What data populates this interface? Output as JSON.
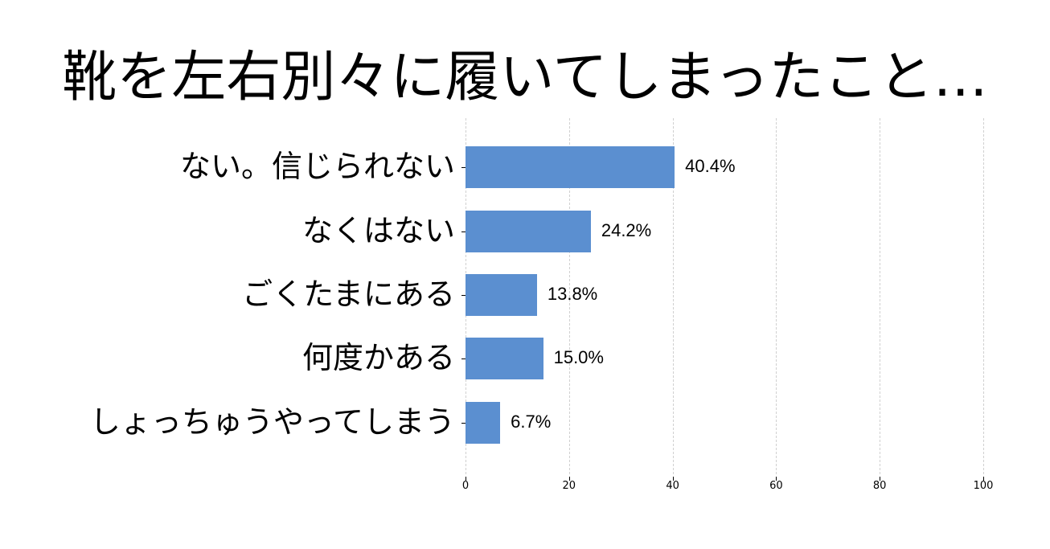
{
  "chart_data": {
    "type": "bar",
    "orientation": "horizontal",
    "title": "靴を左右別々に履いてしまったこと…",
    "categories": [
      "ない。信じられない",
      "なくはない",
      "ごくたまにある",
      "何度かある",
      "しょっちゅうやってしまう"
    ],
    "values": [
      40.4,
      24.2,
      13.8,
      15.0,
      6.7
    ],
    "value_labels": [
      "40.4%",
      "24.2%",
      "13.8%",
      "15.0%",
      "6.7%"
    ],
    "xlabel": "",
    "ylabel": "",
    "xlim": [
      0,
      100
    ],
    "xticks": [
      "0",
      "20",
      "40",
      "60",
      "80",
      "100"
    ],
    "grid": "vertical dashed",
    "legend": "none",
    "bar_color": "#5b8fd0"
  }
}
